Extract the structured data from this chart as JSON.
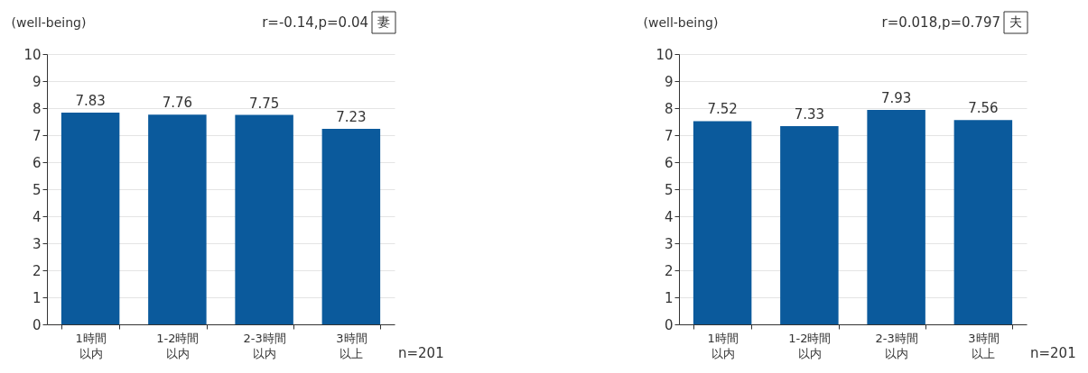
{
  "chart_data": [
    {
      "type": "bar",
      "title": "妻",
      "ylabel": "(well-being)",
      "categories": [
        "1時間以内",
        "1-2時間以内",
        "2-3時間以内",
        "3時間以上"
      ],
      "values": [
        7.83,
        7.76,
        7.75,
        7.23
      ],
      "color": "#0b5a9c",
      "ylim": [
        0,
        10
      ],
      "yticks": [
        0,
        1,
        2,
        3,
        4,
        5,
        6,
        7,
        8,
        9,
        10
      ],
      "grid": "y",
      "data_labels": true,
      "annotations": [
        "r=-0.14,p=0.04",
        "n=201"
      ]
    },
    {
      "type": "bar",
      "title": "夫",
      "ylabel": "(well-being)",
      "categories": [
        "1時間以内",
        "1-2時間以内",
        "2-3時間以内",
        "3時間以上"
      ],
      "values": [
        7.52,
        7.33,
        7.93,
        7.56
      ],
      "color": "#0b5a9c",
      "ylim": [
        0,
        10
      ],
      "yticks": [
        0,
        1,
        2,
        3,
        4,
        5,
        6,
        7,
        8,
        9,
        10
      ],
      "grid": "y",
      "data_labels": true,
      "annotations": [
        "r=0.018,p=0.797",
        "n=201"
      ]
    }
  ]
}
